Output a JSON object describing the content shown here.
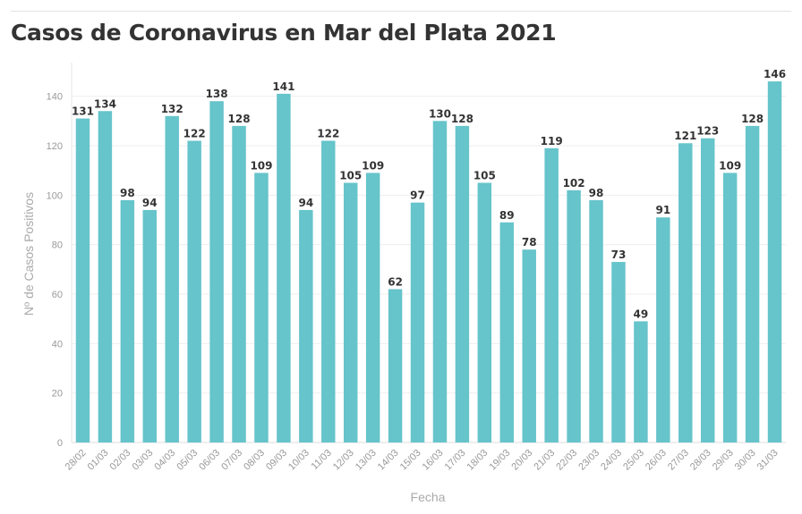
{
  "chart_data": {
    "type": "bar",
    "title": "Casos de Coronavirus en Mar del Plata 2021",
    "xlabel": "Fecha",
    "ylabel": "Nº de Casos Positivos",
    "ylim": [
      0,
      150
    ],
    "yticks": [
      0,
      20,
      40,
      60,
      80,
      100,
      120,
      140
    ],
    "grid": true,
    "bar_color": "#66c4cb",
    "categories": [
      "28/02",
      "01/03",
      "02/03",
      "03/03",
      "04/03",
      "05/03",
      "06/03",
      "07/03",
      "08/03",
      "09/03",
      "10/03",
      "11/03",
      "12/03",
      "13/03",
      "14/03",
      "15/03",
      "16/03",
      "17/03",
      "18/03",
      "19/03",
      "20/03",
      "21/03",
      "22/03",
      "23/03",
      "24/03",
      "25/03",
      "26/03",
      "27/03",
      "28/03",
      "29/03",
      "30/03",
      "31/03"
    ],
    "values": [
      131,
      134,
      98,
      94,
      132,
      122,
      138,
      128,
      109,
      141,
      94,
      122,
      105,
      109,
      62,
      97,
      130,
      128,
      105,
      89,
      78,
      119,
      102,
      98,
      73,
      49,
      91,
      121,
      123,
      109,
      128,
      146
    ]
  }
}
